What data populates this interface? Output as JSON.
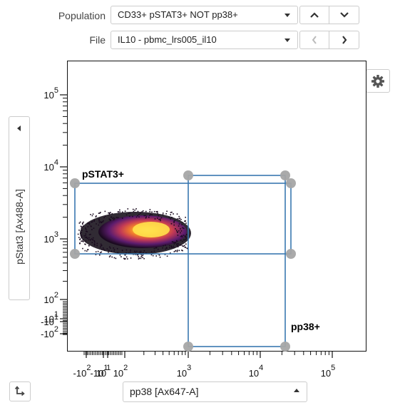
{
  "controls": {
    "population_label": "Population",
    "population_value": "CD33+ pSTAT3+ NOT pp38+",
    "file_label": "File",
    "file_value": "IL10 - pbmc_lrs005_il10"
  },
  "plot": {
    "y_axis_label": "pStat3 [Ax488-A]",
    "x_axis_label": "pp38 [Ax647-A]",
    "gates": [
      {
        "name": "pSTAT3+"
      },
      {
        "name": "pp38+"
      }
    ],
    "y_ticks": [
      {
        "mant": "10",
        "exp": "5"
      },
      {
        "mant": "10",
        "exp": "4"
      },
      {
        "mant": "10",
        "exp": "3"
      },
      {
        "mant": "10",
        "exp": "2"
      },
      {
        "mant": "10",
        "exp": "1"
      },
      {
        "mant": "-10",
        "exp": "1"
      },
      {
        "mant": "-10",
        "exp": "2"
      }
    ],
    "x_ticks": [
      {
        "mant": "-10",
        "exp": "2"
      },
      {
        "mant": "-10",
        "exp": "1"
      },
      {
        "mant": "10",
        "exp": "1"
      },
      {
        "mant": "10",
        "exp": "2"
      },
      {
        "mant": "10",
        "exp": "3"
      },
      {
        "mant": "10",
        "exp": "4"
      },
      {
        "mant": "10",
        "exp": "5"
      }
    ]
  },
  "icons": {
    "settings": "gear-icon",
    "swap_axes": "swap-axes-icon",
    "collapse": "caret-left-icon",
    "prev_population": "chevron-up-icon",
    "next_population": "chevron-down-icon",
    "prev_file": "chevron-left-icon",
    "next_file": "chevron-right-icon"
  },
  "colors": {
    "gate_stroke": "#3a78b0",
    "gate_handle": "#a6a6a6",
    "density_high": "#ffe85a",
    "density_mid": "#e0603a",
    "density_low": "#5a1a6a"
  }
}
